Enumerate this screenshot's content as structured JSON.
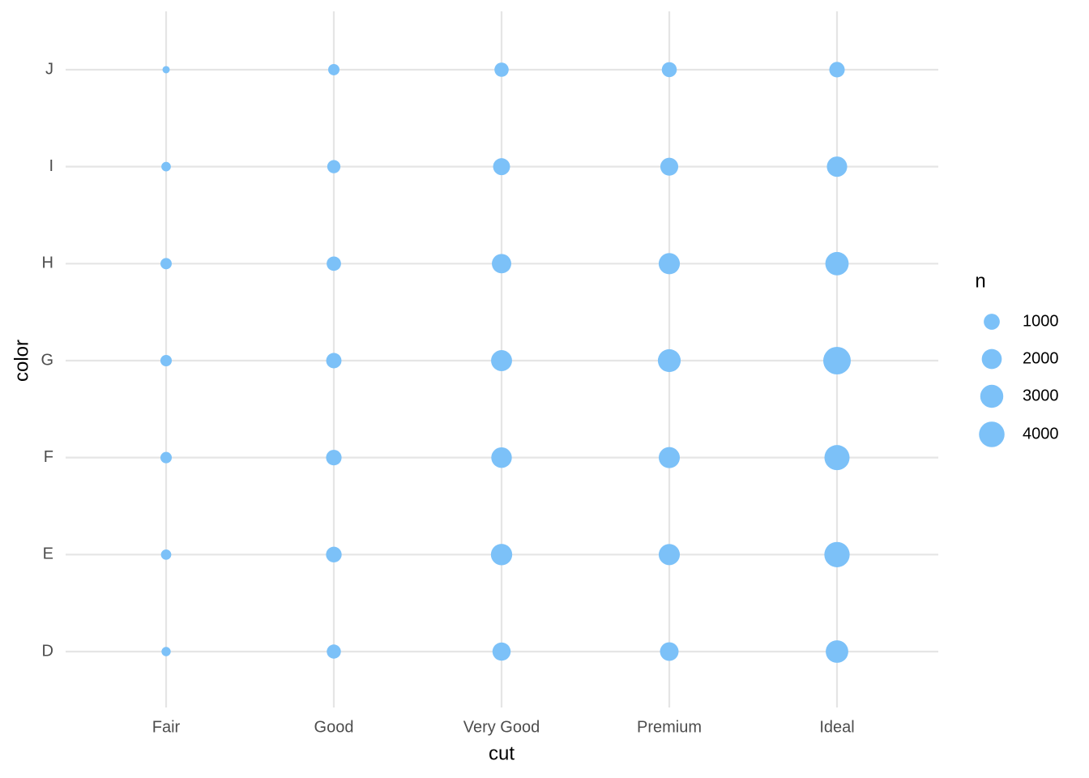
{
  "chart_data": {
    "type": "bubble",
    "x_label": "cut",
    "y_label": "color",
    "categories": [
      "Fair",
      "Good",
      "Very Good",
      "Premium",
      "Ideal"
    ],
    "y_categories": [
      "D",
      "E",
      "F",
      "G",
      "H",
      "I",
      "J"
    ],
    "values": [
      [
        163,
        224,
        312,
        314,
        303,
        175,
        119
      ],
      [
        662,
        933,
        909,
        871,
        702,
        522,
        307
      ],
      [
        1513,
        2400,
        2164,
        2299,
        1824,
        1204,
        678
      ],
      [
        1603,
        2337,
        2331,
        2924,
        2360,
        1428,
        808
      ],
      [
        2834,
        3903,
        3826,
        4884,
        3115,
        2093,
        896
      ]
    ],
    "color": "#7cc1f8",
    "grid": true,
    "size_legend": {
      "title": "n",
      "breaks": [
        1000,
        2000,
        3000,
        4000
      ]
    }
  }
}
